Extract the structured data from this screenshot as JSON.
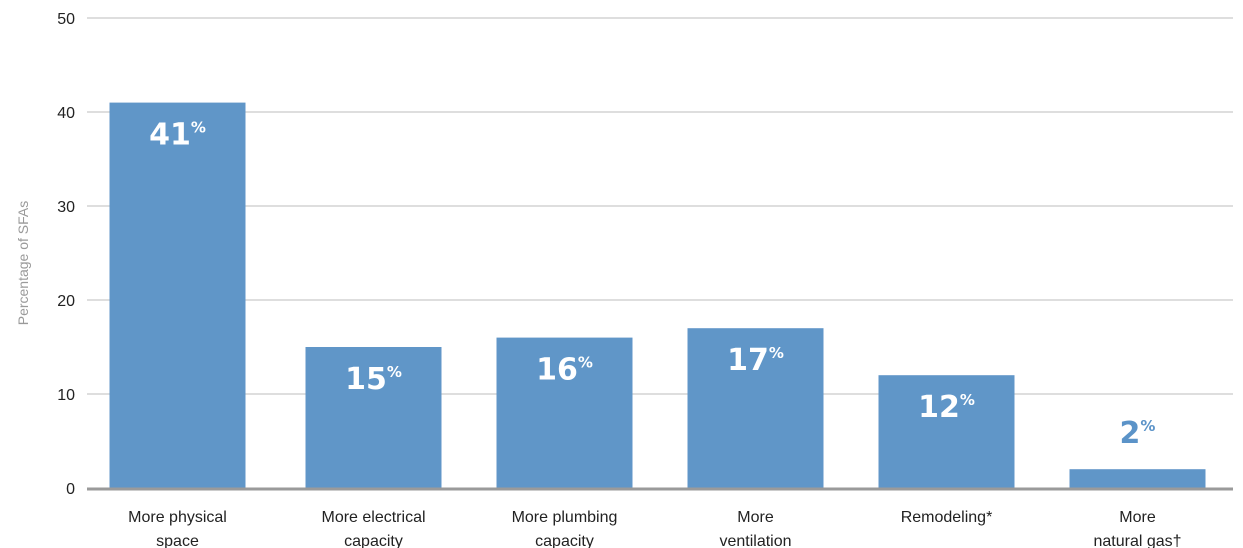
{
  "chart_data": {
    "type": "bar",
    "title": "",
    "xlabel": "",
    "ylabel": "Percentage of SFAs",
    "ylim": [
      0,
      50
    ],
    "yticks": [
      0,
      10,
      20,
      30,
      40,
      50
    ],
    "grid": true,
    "categories": [
      [
        "More physical",
        "space"
      ],
      [
        "More electrical",
        "capacity"
      ],
      [
        "More plumbing",
        "capacity"
      ],
      [
        "More",
        "ventilation"
      ],
      [
        "Remodeling*"
      ],
      [
        "More",
        "natural gas†"
      ]
    ],
    "values": [
      41,
      15,
      16,
      17,
      12,
      2
    ],
    "data_labels": [
      "41",
      "15",
      "16",
      "17",
      "12",
      "2"
    ],
    "data_label_suffix": "%",
    "colors": {
      "bar": "#6096c8",
      "label_inside": "#ffffff",
      "label_outside": "#5b93c8",
      "grid": "#bdbdbd",
      "axis": "#9a9a9a"
    }
  }
}
